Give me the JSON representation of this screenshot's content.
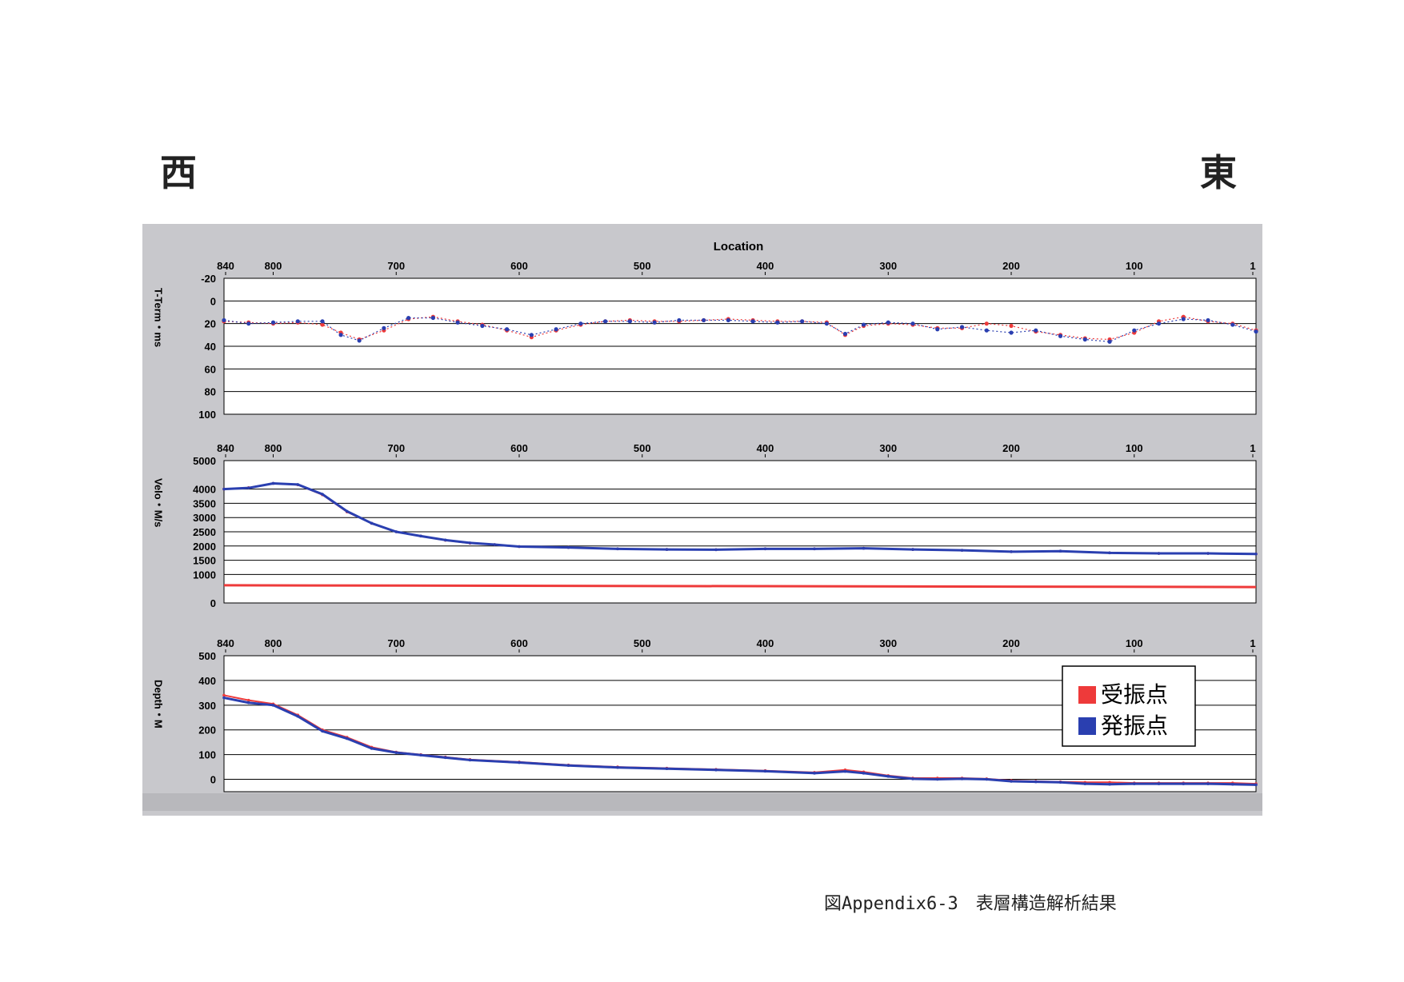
{
  "header": {
    "west": "西",
    "east": "東"
  },
  "caption": "図Appendix6-3　表層構造解析結果",
  "legend": {
    "receiver": "受振点",
    "shot": "発振点"
  },
  "colors": {
    "receiver": "#ee3a3a",
    "shot": "#2a3fb0",
    "panel": "#c8c8cc",
    "plot_bg": "#ffffff",
    "grid": "#000000"
  },
  "chart_data": [
    {
      "type": "scatter",
      "title": "Location",
      "ylabel": "T-Term・ms",
      "x_ticks": [
        "840",
        "800",
        "700",
        "600",
        "500",
        "400",
        "300",
        "200",
        "100",
        "1"
      ],
      "x_range": [
        840,
        1
      ],
      "y_ticks": [
        "-20",
        "0",
        "20",
        "40",
        "60",
        "80",
        "100"
      ],
      "ylim": [
        -20,
        100
      ],
      "y_inverted": true,
      "grid": true,
      "series": [
        {
          "name": "受振点",
          "x": [
            840,
            820,
            800,
            780,
            760,
            745,
            730,
            710,
            690,
            670,
            650,
            630,
            610,
            590,
            570,
            550,
            530,
            510,
            490,
            470,
            450,
            430,
            410,
            390,
            370,
            350,
            335,
            320,
            300,
            280,
            260,
            240,
            220,
            200,
            180,
            160,
            140,
            120,
            100,
            80,
            60,
            40,
            20,
            1
          ],
          "y": [
            18,
            19,
            20,
            19,
            21,
            28,
            34,
            26,
            16,
            14,
            18,
            21,
            26,
            32,
            26,
            21,
            18,
            17,
            18,
            18,
            17,
            16,
            17,
            18,
            18,
            19,
            30,
            22,
            20,
            21,
            24,
            24,
            20,
            22,
            27,
            30,
            33,
            34,
            28,
            18,
            14,
            18,
            20,
            26
          ]
        },
        {
          "name": "発振点",
          "x": [
            840,
            820,
            800,
            780,
            760,
            745,
            730,
            710,
            690,
            670,
            650,
            630,
            610,
            590,
            570,
            550,
            530,
            510,
            490,
            470,
            450,
            430,
            410,
            390,
            370,
            350,
            335,
            320,
            300,
            280,
            260,
            240,
            220,
            200,
            180,
            160,
            140,
            120,
            100,
            80,
            60,
            40,
            20,
            1
          ],
          "y": [
            17,
            20,
            19,
            18,
            18,
            30,
            35,
            24,
            15,
            15,
            19,
            22,
            25,
            30,
            25,
            20,
            18,
            18,
            19,
            17,
            17,
            17,
            18,
            19,
            18,
            20,
            29,
            21,
            19,
            20,
            25,
            23,
            26,
            28,
            26,
            31,
            34,
            36,
            26,
            20,
            16,
            17,
            21,
            27
          ]
        }
      ]
    },
    {
      "type": "line",
      "ylabel": "Velo・M/s",
      "x_ticks": [
        "840",
        "800",
        "700",
        "600",
        "500",
        "400",
        "300",
        "200",
        "100",
        "1"
      ],
      "x_range": [
        840,
        1
      ],
      "y_ticks": [
        "5000",
        "4000",
        "3500",
        "3000",
        "2500",
        "2000",
        "1500",
        "1000",
        "0"
      ],
      "ylim": [
        0,
        5000
      ],
      "grid": true,
      "series": [
        {
          "name": "受振点",
          "x": [
            840,
            820,
            800,
            780,
            760,
            740,
            720,
            700,
            680,
            660,
            640,
            620,
            600,
            560,
            520,
            480,
            440,
            400,
            360,
            320,
            280,
            240,
            200,
            160,
            120,
            80,
            40,
            1
          ],
          "y": [
            4000,
            4050,
            4200,
            4150,
            3800,
            3200,
            2800,
            2500,
            2350,
            2200,
            2100,
            2050,
            1980,
            1950,
            1900,
            1880,
            1870,
            1900,
            1900,
            1920,
            1880,
            1850,
            1800,
            1820,
            1760,
            1740,
            1740,
            1720
          ]
        },
        {
          "name": "発振点",
          "x": [
            840,
            820,
            800,
            780,
            760,
            740,
            720,
            700,
            680,
            660,
            640,
            620,
            600,
            560,
            520,
            480,
            440,
            400,
            360,
            320,
            280,
            240,
            200,
            160,
            120,
            80,
            40,
            1
          ],
          "y": [
            4000,
            4040,
            4200,
            4160,
            3820,
            3220,
            2800,
            2500,
            2350,
            2210,
            2110,
            2050,
            1980,
            1950,
            1900,
            1880,
            1870,
            1900,
            1900,
            1920,
            1880,
            1850,
            1800,
            1820,
            1760,
            1740,
            1740,
            1720
          ]
        },
        {
          "name": "",
          "x": [
            840,
            1
          ],
          "y": [
            620,
            560
          ]
        }
      ]
    },
    {
      "type": "line",
      "ylabel": "Depth・M",
      "x_ticks": [
        "840",
        "800",
        "700",
        "600",
        "500",
        "400",
        "300",
        "200",
        "100",
        "1"
      ],
      "x_range": [
        840,
        1
      ],
      "y_ticks": [
        "500",
        "400",
        "300",
        "200",
        "100",
        "0"
      ],
      "ylim": [
        -50,
        500
      ],
      "grid": true,
      "series": [
        {
          "name": "受振点",
          "x": [
            840,
            820,
            800,
            780,
            760,
            740,
            720,
            700,
            680,
            660,
            640,
            600,
            560,
            520,
            480,
            440,
            400,
            360,
            335,
            320,
            300,
            280,
            260,
            240,
            220,
            200,
            180,
            160,
            140,
            120,
            100,
            80,
            60,
            40,
            20,
            1
          ],
          "y": [
            340,
            320,
            305,
            260,
            200,
            170,
            130,
            110,
            100,
            90,
            80,
            70,
            58,
            50,
            45,
            40,
            35,
            28,
            38,
            30,
            15,
            5,
            5,
            5,
            2,
            -5,
            -8,
            -10,
            -12,
            -12,
            -15,
            -15,
            -15,
            -15,
            -15,
            -18
          ]
        },
        {
          "name": "発振点",
          "x": [
            840,
            820,
            800,
            780,
            760,
            740,
            720,
            700,
            680,
            660,
            640,
            600,
            560,
            520,
            480,
            440,
            400,
            360,
            335,
            320,
            300,
            280,
            260,
            240,
            220,
            200,
            180,
            160,
            140,
            120,
            100,
            80,
            60,
            40,
            20,
            1
          ],
          "y": [
            330,
            310,
            300,
            255,
            195,
            165,
            125,
            108,
            98,
            88,
            78,
            68,
            56,
            48,
            43,
            38,
            33,
            25,
            32,
            25,
            12,
            2,
            0,
            2,
            0,
            -8,
            -10,
            -12,
            -18,
            -20,
            -18,
            -18,
            -18,
            -18,
            -20,
            -22
          ]
        }
      ]
    }
  ]
}
